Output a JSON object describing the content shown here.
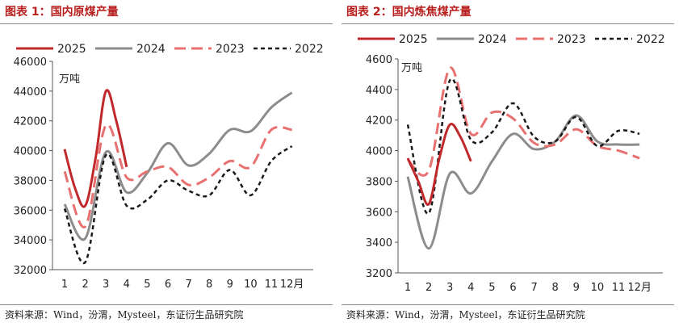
{
  "colors": {
    "y2025": "#c0282c",
    "y2024": "#8c8c8c",
    "y2023": "#e87070",
    "y2022": "#1a1a1a",
    "title": "#b8201e"
  },
  "chart_data": [
    {
      "title": "图表 1：国内原煤产量",
      "type": "line",
      "unit": "万吨",
      "x": [
        1,
        2,
        3,
        4,
        5,
        6,
        7,
        8,
        9,
        10,
        11,
        12
      ],
      "xtick_labels": [
        "1",
        "2",
        "3",
        "4",
        "5",
        "6",
        "7",
        "8",
        "9",
        "10",
        "11",
        "12月"
      ],
      "ylim": [
        32000,
        46000
      ],
      "yticks": [
        32000,
        34000,
        36000,
        38000,
        40000,
        42000,
        44000,
        46000
      ],
      "legend": "top",
      "series": [
        {
          "name": "2025",
          "x": [
            1,
            1.5,
            2,
            2.5,
            3,
            3.5,
            4
          ],
          "values": [
            40100,
            37500,
            36300,
            39500,
            44000,
            42000,
            38900
          ]
        },
        {
          "name": "2024",
          "x": [
            1,
            2,
            3,
            4,
            5,
            6,
            7,
            8,
            9,
            10,
            11,
            12
          ],
          "values": [
            36400,
            34100,
            39900,
            37200,
            38500,
            40500,
            39000,
            39800,
            41400,
            41300,
            42900,
            43900
          ]
        },
        {
          "name": "2023",
          "x": [
            1,
            2,
            3,
            4,
            5,
            6,
            7,
            8,
            9,
            10,
            11,
            12
          ],
          "values": [
            38600,
            34900,
            41700,
            38200,
            38600,
            38900,
            37700,
            38200,
            39300,
            38900,
            41400,
            41400
          ]
        },
        {
          "name": "2022",
          "x": [
            1,
            2,
            3,
            4,
            5,
            6,
            7,
            8,
            9,
            10,
            11,
            12
          ],
          "values": [
            36100,
            32500,
            39700,
            36300,
            36700,
            38000,
            37300,
            37000,
            38700,
            37000,
            39300,
            40300
          ]
        }
      ],
      "source": "资料来源：Wind，汾渭，Mysteel，东证衍生品研究院"
    },
    {
      "title": "图表 2：国内炼焦煤产量",
      "type": "line",
      "unit": "万吨",
      "x": [
        1,
        2,
        3,
        4,
        5,
        6,
        7,
        8,
        9,
        10,
        11,
        12
      ],
      "xtick_labels": [
        "1",
        "2",
        "3",
        "4",
        "5",
        "6",
        "7",
        "8",
        "9",
        "10",
        "11",
        "12月"
      ],
      "ylim": [
        3200,
        4600
      ],
      "yticks": [
        3200,
        3400,
        3600,
        3800,
        4000,
        4200,
        4400,
        4600
      ],
      "legend": "top",
      "series": [
        {
          "name": "2025",
          "x": [
            1,
            1.5,
            2,
            2.5,
            3,
            3.5,
            4
          ],
          "values": [
            3950,
            3800,
            3650,
            3950,
            4170,
            4090,
            3930
          ]
        },
        {
          "name": "2024",
          "x": [
            1,
            2,
            3,
            4,
            5,
            6,
            7,
            8,
            9,
            10,
            11,
            12
          ],
          "values": [
            3830,
            3360,
            3850,
            3720,
            3930,
            4110,
            4010,
            4060,
            4230,
            4060,
            4040,
            4040
          ]
        },
        {
          "name": "2023",
          "x": [
            1,
            2,
            3,
            4,
            5,
            6,
            7,
            8,
            9,
            10,
            11,
            12
          ],
          "values": [
            3940,
            3870,
            4540,
            4110,
            4250,
            4210,
            4050,
            4040,
            4140,
            4030,
            4000,
            3950
          ]
        },
        {
          "name": "2022",
          "x": [
            1,
            2,
            3,
            4,
            5,
            6,
            7,
            8,
            9,
            10,
            11,
            12
          ],
          "values": [
            4170,
            3590,
            4460,
            4070,
            4120,
            4310,
            4090,
            4060,
            4220,
            4030,
            4130,
            4110
          ]
        }
      ],
      "source": "资料来源：Wind，汾渭，Mysteel，东证衍生品研究院"
    }
  ]
}
